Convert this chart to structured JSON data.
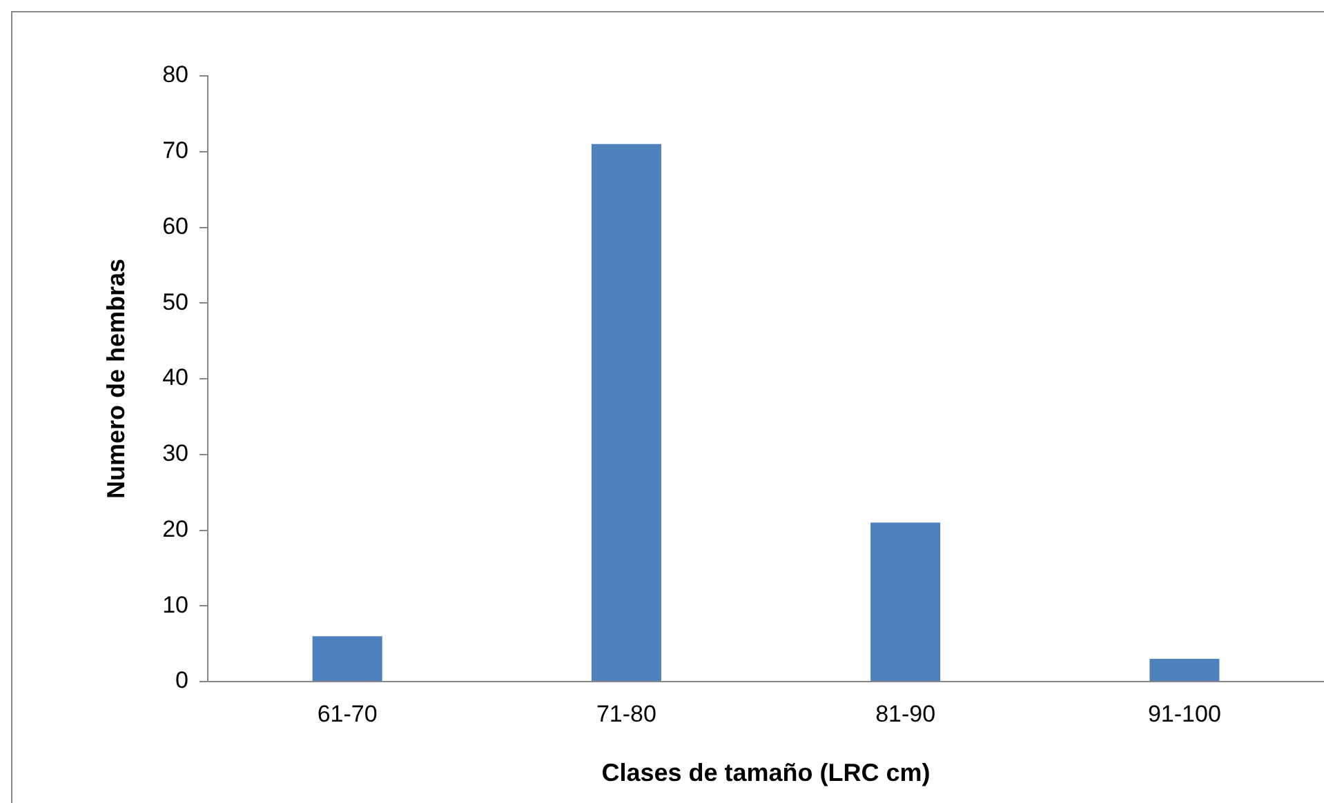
{
  "chart_data": {
    "type": "bar",
    "xlabel": "Clases de tamaño (LRC cm)",
    "ylabel": "Numero de hembras",
    "categories": [
      "61-70",
      "71-80",
      "81-90",
      "91-100"
    ],
    "values": [
      6,
      71,
      21,
      3
    ],
    "color": "#4f81bd",
    "ylim": [
      0,
      80
    ],
    "yticks": [
      0,
      10,
      20,
      30,
      40,
      50,
      60,
      70,
      80
    ],
    "grid": false,
    "legend": false
  }
}
